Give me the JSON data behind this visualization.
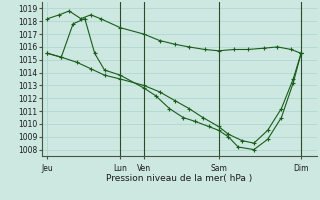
{
  "xlabel": "Pression niveau de la mer( hPa )",
  "bg_color": "#cce8e0",
  "grid_color": "#b0d8d0",
  "line_color": "#1a5c1a",
  "ylim": [
    1007.5,
    1019.5
  ],
  "yticks": [
    1008,
    1009,
    1010,
    1011,
    1012,
    1013,
    1014,
    1015,
    1016,
    1017,
    1018,
    1019
  ],
  "xlim": [
    0,
    14.0
  ],
  "xtick_positions": [
    0.3,
    4.0,
    5.2,
    9.0,
    13.2
  ],
  "xtick_labels": [
    "Jeu",
    "Lun",
    "Ven",
    "Sam",
    "Dim"
  ],
  "vlines": [
    4.0,
    5.2,
    9.0,
    13.2
  ],
  "series": [
    {
      "x": [
        0.3,
        0.9,
        1.4,
        2.0,
        2.5,
        3.0,
        4.0,
        5.2,
        6.0,
        6.8,
        7.5,
        8.3,
        9.0,
        9.8,
        10.5,
        11.3,
        12.0,
        12.7,
        13.2
      ],
      "y": [
        1018.2,
        1018.5,
        1018.8,
        1018.2,
        1018.5,
        1018.2,
        1017.5,
        1017.0,
        1016.5,
        1016.2,
        1016.0,
        1015.8,
        1015.7,
        1015.8,
        1015.8,
        1015.9,
        1016.0,
        1015.8,
        1015.5
      ]
    },
    {
      "x": [
        0.3,
        1.0,
        1.8,
        2.5,
        3.2,
        4.0,
        5.2,
        6.0,
        6.8,
        7.5,
        8.2,
        9.0,
        9.5,
        10.2,
        10.8,
        11.5,
        12.2,
        12.8,
        13.2
      ],
      "y": [
        1015.5,
        1015.2,
        1014.8,
        1014.3,
        1013.8,
        1013.5,
        1013.0,
        1012.5,
        1011.8,
        1011.2,
        1010.5,
        1009.8,
        1009.2,
        1008.7,
        1008.5,
        1009.5,
        1011.2,
        1013.5,
        1015.5
      ]
    },
    {
      "x": [
        0.3,
        1.0,
        1.6,
        2.2,
        2.7,
        3.2,
        4.0,
        5.2,
        5.8,
        6.5,
        7.2,
        7.8,
        8.5,
        9.0,
        9.5,
        10.0,
        10.8,
        11.5,
        12.2,
        12.8,
        13.2
      ],
      "y": [
        1015.5,
        1015.2,
        1017.8,
        1018.2,
        1015.5,
        1014.2,
        1013.8,
        1012.8,
        1012.2,
        1011.2,
        1010.5,
        1010.2,
        1009.8,
        1009.5,
        1009.0,
        1008.2,
        1008.0,
        1008.8,
        1010.5,
        1013.2,
        1015.5
      ]
    }
  ]
}
